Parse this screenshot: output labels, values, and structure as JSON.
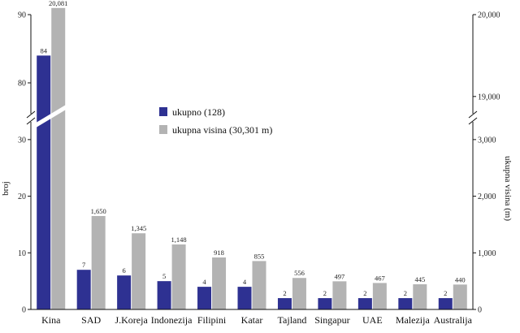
{
  "chart_data": {
    "type": "bar",
    "categories": [
      "Kina",
      "SAD",
      "J.Koreja",
      "Indonezija",
      "Filipini",
      "Katar",
      "Tajland",
      "Singapur",
      "UAE",
      "Malezija",
      "Australija"
    ],
    "series": [
      {
        "name": "ukupno (128)",
        "axis": "left",
        "color": "#2e3192",
        "values": [
          84,
          7,
          6,
          5,
          4,
          4,
          2,
          2,
          2,
          2,
          2
        ],
        "labels": [
          "84",
          "7",
          "6",
          "5",
          "4",
          "4",
          "2",
          "2",
          "2",
          "2",
          "2"
        ]
      },
      {
        "name": "ukupna visina (30,301 m)",
        "axis": "right",
        "color": "#b3b3b3",
        "values": [
          20081,
          1650,
          1345,
          1148,
          918,
          855,
          556,
          497,
          467,
          445,
          440
        ],
        "labels": [
          "20,081",
          "1,650",
          "1,345",
          "1,148",
          "918",
          "855",
          "556",
          "497",
          "467",
          "445",
          "440"
        ]
      }
    ],
    "ylabel": "broj",
    "ylabel_right": "ukupna visina (m)",
    "y_left": {
      "broken": true,
      "lower_range": [
        0,
        35
      ],
      "upper_range": [
        75,
        90
      ],
      "lower_ticks": [
        "0",
        "10",
        "20",
        "30"
      ],
      "upper_ticks": [
        "80",
        "90"
      ]
    },
    "y_right": {
      "broken": true,
      "lower_range": [
        0,
        3500
      ],
      "upper_range": [
        18750,
        20000
      ],
      "lower_ticks": [
        "0",
        "1,000",
        "2,000",
        "3,000"
      ],
      "upper_ticks": [
        "19,000",
        "20,000"
      ]
    },
    "legend": {
      "position": "center",
      "entries": [
        "ukupno (128)",
        "ukupna visina (30,301 m)"
      ]
    },
    "grid": false
  }
}
